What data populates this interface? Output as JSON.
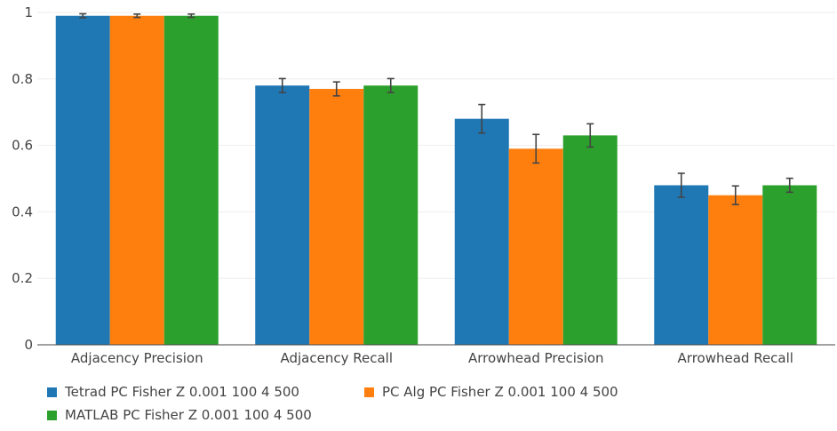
{
  "chart_data": {
    "type": "bar",
    "categories": [
      "Adjacency Precision",
      "Adjacency Recall",
      "Arrowhead Precision",
      "Arrowhead Recall"
    ],
    "series": [
      {
        "name": "Tetrad PC Fisher Z 0.001 100 4 500",
        "color": "#1f77b4",
        "values": [
          0.99,
          0.78,
          0.68,
          0.48
        ],
        "error": [
          0.006,
          0.021,
          0.043,
          0.036
        ]
      },
      {
        "name": "PC Alg PC Fisher Z 0.001 100 4 500",
        "color": "#ff7f0e",
        "values": [
          0.99,
          0.77,
          0.59,
          0.45
        ],
        "error": [
          0.005,
          0.021,
          0.043,
          0.028
        ]
      },
      {
        "name": "MATLAB PC Fisher Z 0.001 100 4 500",
        "color": "#2ca02c",
        "values": [
          0.99,
          0.78,
          0.63,
          0.48
        ],
        "error": [
          0.005,
          0.021,
          0.035,
          0.021
        ]
      }
    ],
    "yticks": [
      "0",
      "0.2",
      "0.4",
      "0.6",
      "0.8",
      "1"
    ],
    "ylim": [
      0,
      1
    ],
    "grid": true,
    "legend": "bottom-left",
    "title": "",
    "xlabel": "",
    "ylabel": ""
  }
}
